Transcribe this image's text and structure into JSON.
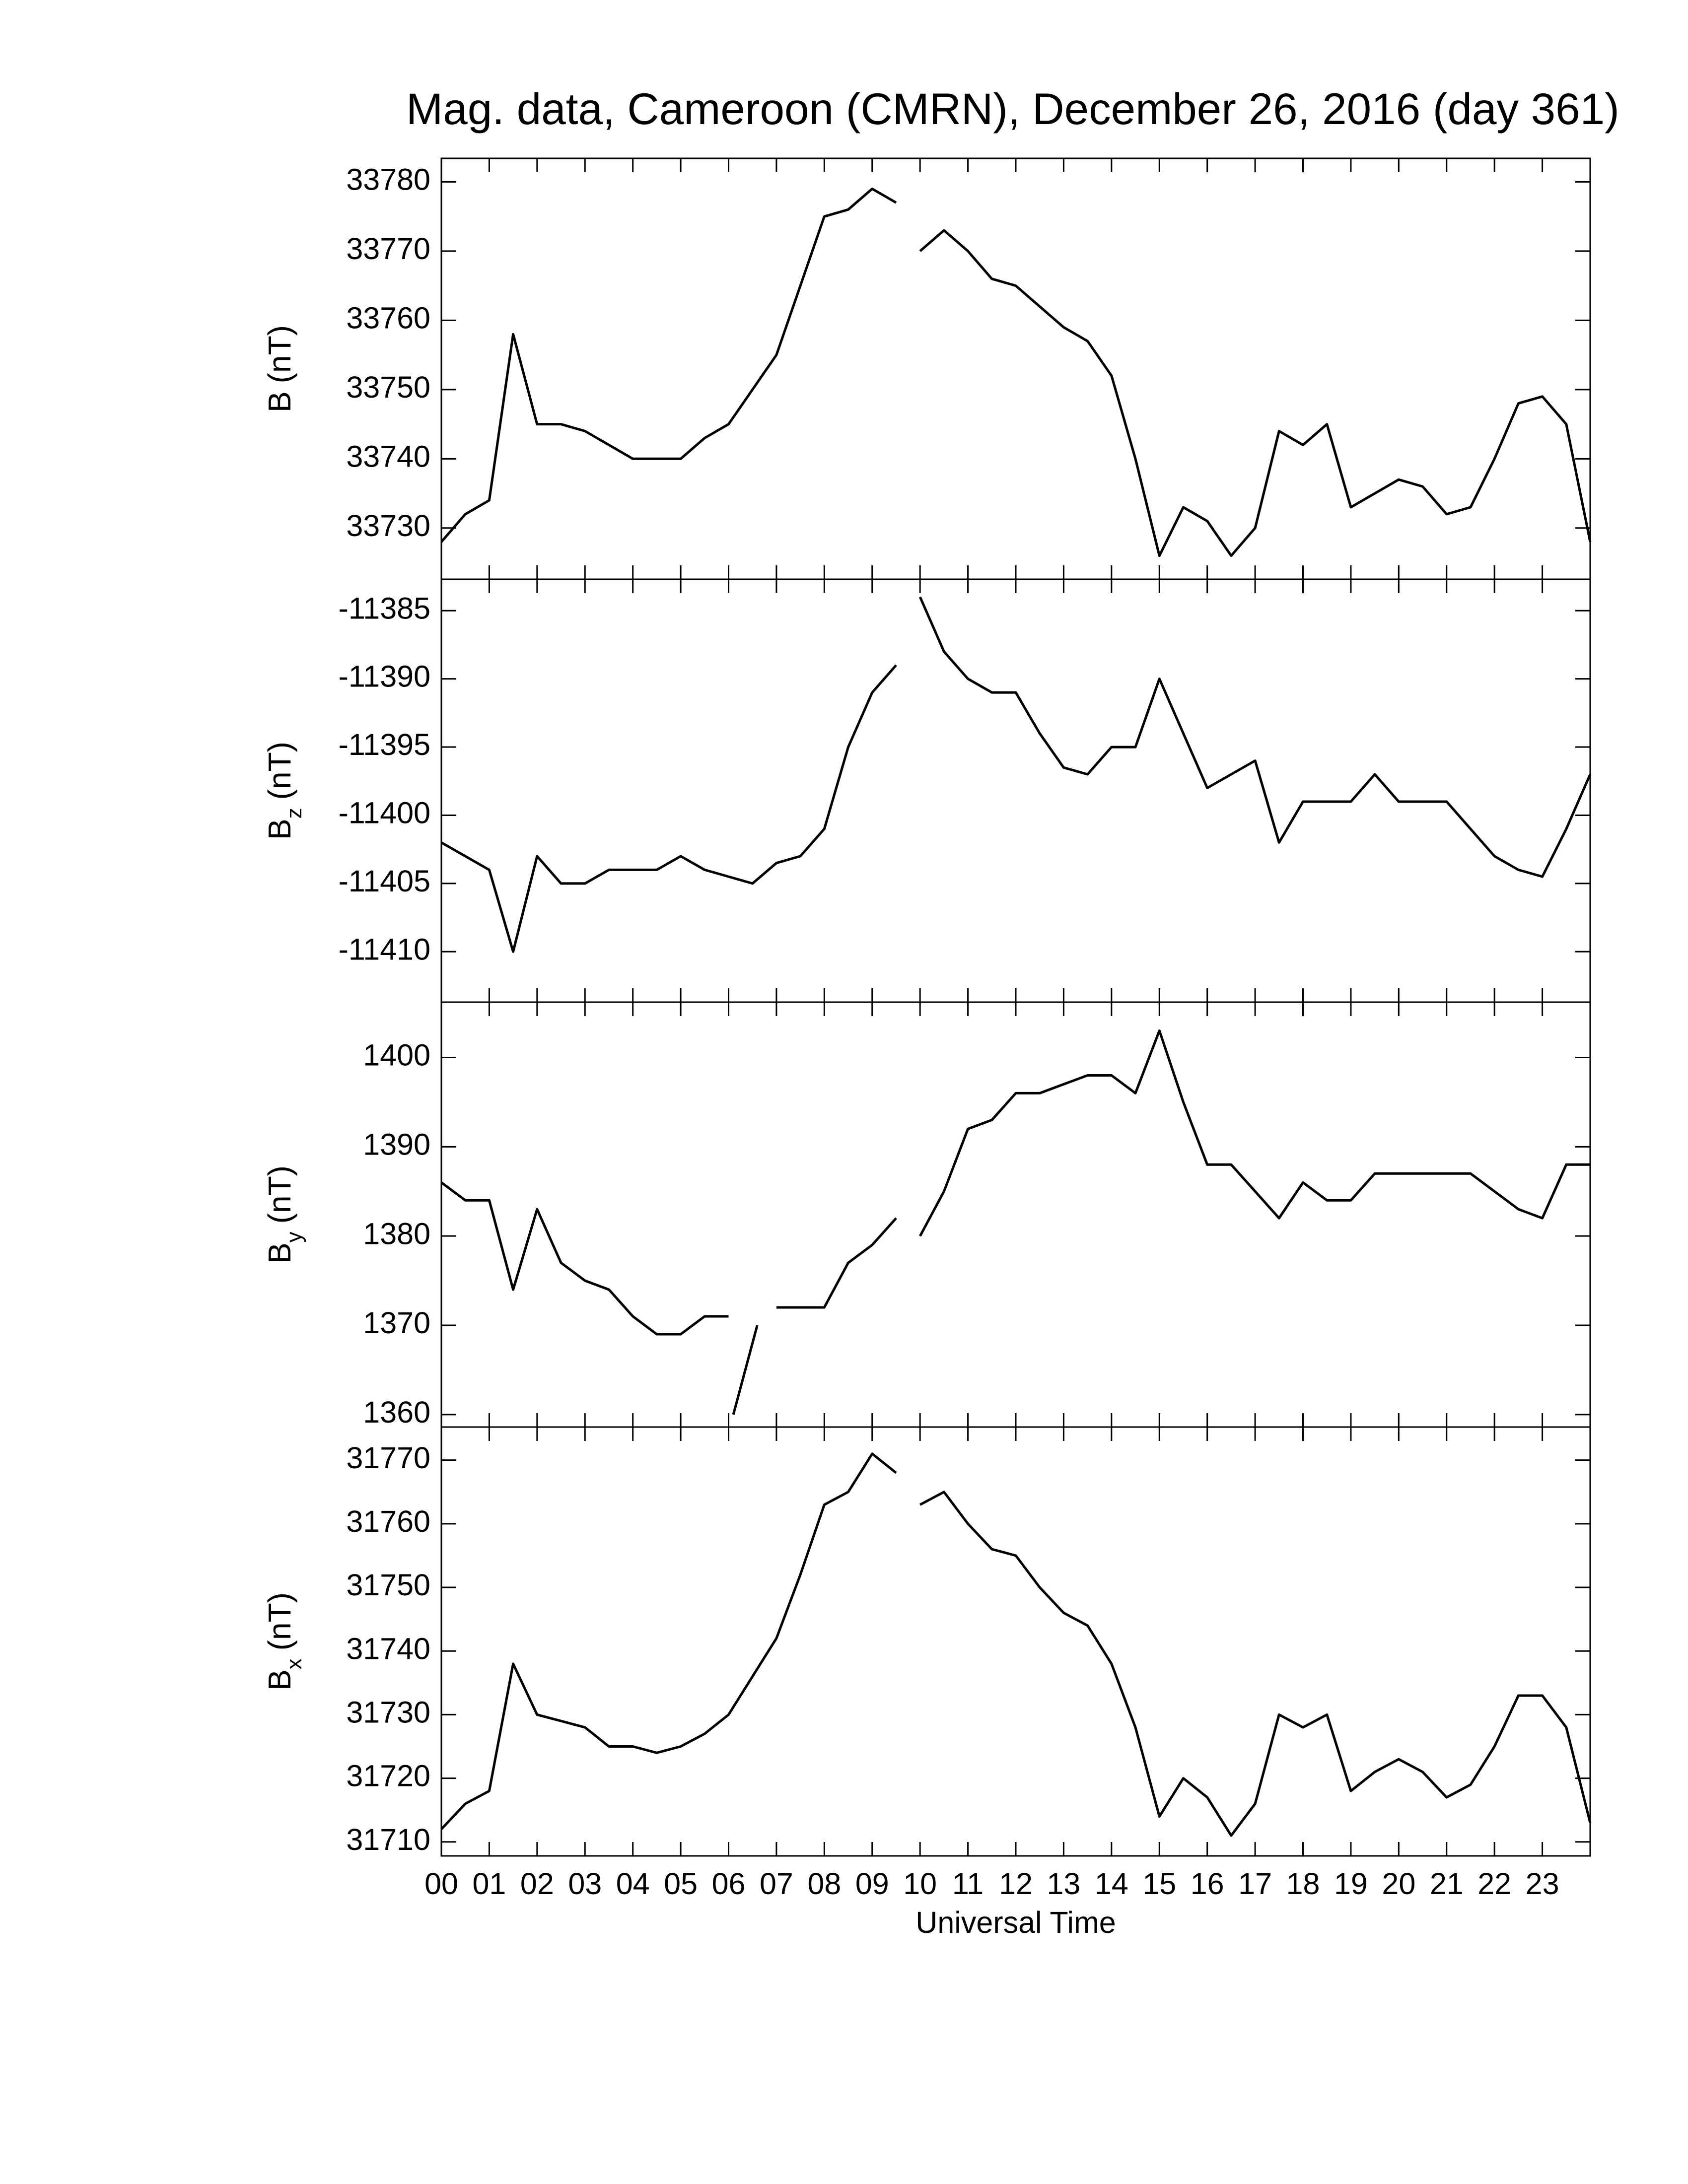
{
  "chart_data": [
    {
      "type": "line",
      "title": "Mag. data, Cameroon (CMRN), December 26, 2016 (day 361)",
      "ylabel": {
        "main": "B",
        "unit": "(nT)"
      },
      "xlim": [
        0,
        24
      ],
      "ylim": [
        33722.6,
        33783.4
      ],
      "yticks": [
        33730,
        33740,
        33750,
        33760,
        33770,
        33780
      ],
      "color": "#000000",
      "x": [
        0,
        0.5,
        1,
        1.5,
        2,
        2.5,
        3,
        3.5,
        4,
        4.5,
        5,
        5.5,
        6,
        6.5,
        7,
        7.5,
        8,
        8.5,
        9,
        9.5,
        9.75,
        10,
        10.5,
        11,
        11.5,
        12,
        12.5,
        13,
        13.5,
        14,
        14.5,
        15,
        15.5,
        16,
        16.5,
        17,
        17.5,
        18,
        18.5,
        19,
        19.5,
        20,
        20.5,
        21,
        21.5,
        22,
        22.5,
        23,
        23.5,
        24
      ],
      "values": [
        33728,
        33732,
        33734,
        33758,
        33745,
        33745,
        33744,
        33742,
        33740,
        33740,
        33740,
        33743,
        33745,
        33750,
        33755,
        33765,
        33775,
        33776,
        33779,
        33777,
        null,
        33770,
        33773,
        33770,
        33766,
        33765,
        33762,
        33759,
        33757,
        33752,
        33740,
        33726,
        33733,
        33731,
        33726,
        33730,
        33744,
        33742,
        33745,
        33733,
        33735,
        33737,
        33736,
        33732,
        33733,
        33740,
        33748,
        33749,
        33745,
        33728
      ]
    },
    {
      "type": "line",
      "ylabel": {
        "main": "B",
        "sub": "z",
        "unit": "(nT)"
      },
      "xlim": [
        0,
        24
      ],
      "ylim": [
        -11413.7,
        -11382.7
      ],
      "yticks": [
        -11410,
        -11405,
        -11400,
        -11395,
        -11390,
        -11385
      ],
      "color": "#000000",
      "x": [
        0,
        0.5,
        1,
        1.5,
        2,
        2.5,
        3,
        3.5,
        4,
        4.5,
        5,
        5.5,
        6,
        6.5,
        7,
        7.5,
        8,
        8.5,
        9,
        9.5,
        9.75,
        10,
        10.5,
        11,
        11.5,
        12,
        12.5,
        13,
        13.5,
        14,
        14.5,
        15,
        15.5,
        16,
        16.5,
        17,
        17.5,
        18,
        18.5,
        19,
        19.5,
        20,
        20.5,
        21,
        21.5,
        22,
        22.5,
        23,
        23.5,
        24
      ],
      "values": [
        -11402,
        -11403,
        -11404,
        -11410,
        -11403,
        -11405,
        -11405,
        -11404,
        -11404,
        -11404,
        -11403,
        -11404,
        -11404.5,
        -11405,
        -11403.5,
        -11403,
        -11401,
        -11395,
        -11391,
        -11389,
        null,
        -11384,
        -11388,
        -11390,
        -11391,
        -11391,
        -11394,
        -11396.5,
        -11397,
        -11395,
        -11395,
        -11390,
        -11394,
        -11398,
        -11397,
        -11396,
        -11402,
        -11399,
        -11399,
        -11399,
        -11397,
        -11399,
        -11399,
        -11399,
        -11401,
        -11403,
        -11404,
        -11404.5,
        -11401,
        -11397
      ]
    },
    {
      "type": "line",
      "ylabel": {
        "main": "B",
        "sub": "y",
        "unit": "(nT)"
      },
      "xlim": [
        0,
        24
      ],
      "ylim": [
        1358.6,
        1406.2
      ],
      "yticks": [
        1360,
        1370,
        1380,
        1390,
        1400
      ],
      "color": "#000000",
      "x": [
        0,
        0.5,
        1,
        1.5,
        2,
        2.5,
        3,
        3.5,
        4,
        4.5,
        5,
        5.5,
        6,
        6.05,
        6.1,
        6.6,
        6.8,
        7,
        7.5,
        8,
        8.5,
        9,
        9.5,
        9.75,
        10,
        10.5,
        11,
        11.5,
        12,
        12.5,
        13,
        13.5,
        14,
        14.5,
        15,
        15.5,
        16,
        16.5,
        17,
        17.5,
        18,
        18.5,
        19,
        19.5,
        20,
        20.5,
        21,
        21.5,
        22,
        22.5,
        23,
        23.5,
        24
      ],
      "values": [
        1386,
        1384,
        1384,
        1374,
        1383,
        1377,
        1375,
        1374,
        1371,
        1369,
        1369,
        1371,
        1371,
        null,
        1360,
        1370,
        null,
        1372,
        1372,
        1372,
        1377,
        1379,
        1382,
        null,
        1380,
        1385,
        1392,
        1393,
        1396,
        1396,
        1397,
        1398,
        1398,
        1396,
        1403,
        1395,
        1388,
        1388,
        1385,
        1382,
        1386,
        1384,
        1384,
        1387,
        1387,
        1387,
        1387,
        1387,
        1385,
        1383,
        1382,
        1388,
        1388
      ]
    },
    {
      "type": "line",
      "ylabel": {
        "main": "B",
        "sub": "x",
        "unit": "(nT)"
      },
      "xlabel": "Universal Time",
      "xlim": [
        0,
        24
      ],
      "ylim": [
        31707.8,
        31775.2
      ],
      "yticks": [
        31710,
        31720,
        31730,
        31740,
        31750,
        31760,
        31770
      ],
      "color": "#000000",
      "xticks": [
        {
          "value": 0,
          "label": "00"
        },
        {
          "value": 1,
          "label": "01"
        },
        {
          "value": 2,
          "label": "02"
        },
        {
          "value": 3,
          "label": "03"
        },
        {
          "value": 4,
          "label": "04"
        },
        {
          "value": 5,
          "label": "05"
        },
        {
          "value": 6,
          "label": "06"
        },
        {
          "value": 7,
          "label": "07"
        },
        {
          "value": 8,
          "label": "08"
        },
        {
          "value": 9,
          "label": "09"
        },
        10,
        11,
        12,
        13,
        14,
        15,
        16,
        17,
        18,
        19,
        20,
        21,
        22,
        23
      ],
      "x": [
        0,
        0.5,
        1,
        1.5,
        2,
        2.5,
        3,
        3.5,
        4,
        4.5,
        5,
        5.5,
        6,
        6.5,
        7,
        7.5,
        8,
        8.5,
        9,
        9.5,
        9.75,
        10,
        10.5,
        11,
        11.5,
        12,
        12.5,
        13,
        13.5,
        14,
        14.5,
        15,
        15.5,
        16,
        16.5,
        17,
        17.5,
        18,
        18.5,
        19,
        19.5,
        20,
        20.5,
        21,
        21.5,
        22,
        22.5,
        23,
        23.5,
        24
      ],
      "values": [
        31712,
        31716,
        31718,
        31738,
        31730,
        31729,
        31728,
        31725,
        31725,
        31724,
        31725,
        31727,
        31730,
        31736,
        31742,
        31752,
        31763,
        31765,
        31771,
        31768,
        null,
        31763,
        31765,
        31760,
        31756,
        31755,
        31750,
        31746,
        31744,
        31738,
        31728,
        31714,
        31720,
        31717,
        31711,
        31716,
        31730,
        31728,
        31730,
        31718,
        31721,
        31723,
        31721,
        31717,
        31719,
        31725,
        31733,
        31733,
        31728,
        31713
      ]
    }
  ]
}
